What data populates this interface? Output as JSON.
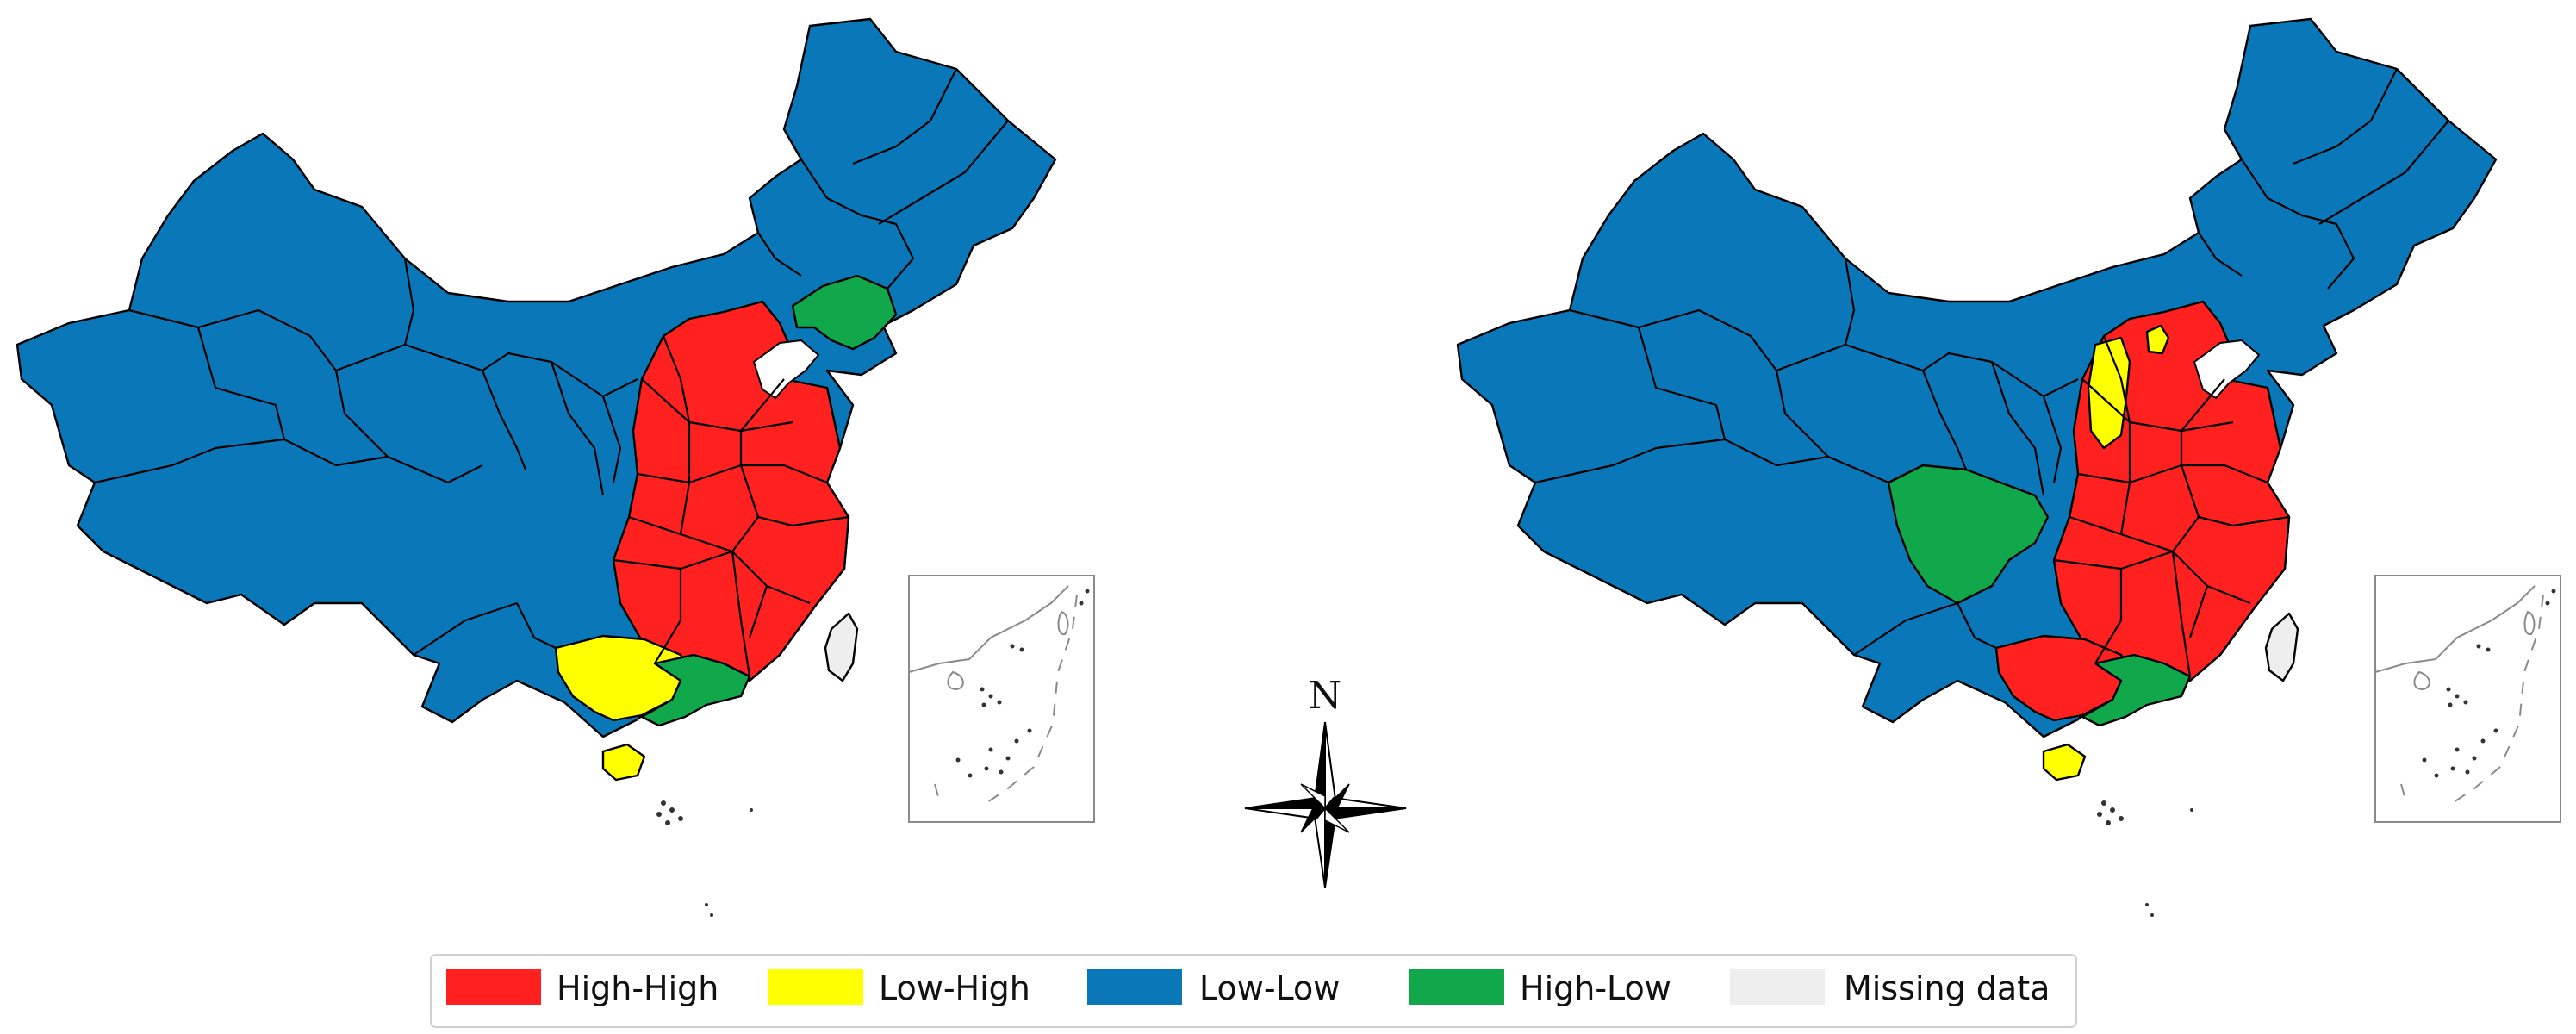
{
  "colors": {
    "high_high": "#ff2020",
    "low_high": "#ffff00",
    "low_low": "#0a78b8",
    "high_low": "#10a84a",
    "missing": "#eeeeee"
  },
  "north_arrow": {
    "label": "N",
    "icon": "compass-rose-icon"
  },
  "legend": {
    "items": [
      {
        "key": "high_high",
        "label": "High-High",
        "color": "#ff2020"
      },
      {
        "key": "low_high",
        "label": "Low-High",
        "color": "#ffff00"
      },
      {
        "key": "low_low",
        "label": "Low-Low",
        "color": "#0a78b8"
      },
      {
        "key": "high_low",
        "label": "High-Low",
        "color": "#10a84a"
      },
      {
        "key": "missing",
        "label": "Missing data",
        "color": "#eeeeee"
      }
    ]
  },
  "maps": [
    {
      "panel": "left",
      "regions": [
        {
          "name": "Liaoning",
          "cluster": "high_low"
        },
        {
          "name": "Guangxi",
          "cluster": "low_high"
        },
        {
          "name": "Hainan",
          "cluster": "low_high"
        },
        {
          "name": "Guangdong",
          "cluster": "high_low"
        },
        {
          "name": "Taiwan",
          "cluster": "missing"
        },
        {
          "name": "Beijing, Tianjin, Hebei, Shanxi, Henan, Shandong, Hubei, Hunan, Anhui, Jiangsu, Shanghai, Zhejiang, Jiangxi, Fujian",
          "cluster": "high_high"
        },
        {
          "name": "Xinjiang, Xizang, Qinghai, Gansu, Inner Mongolia, Ningxia, Shaanxi, Sichuan, Chongqing, Yunnan, Guizhou, Heilongjiang, Jilin",
          "cluster": "low_low"
        }
      ]
    },
    {
      "panel": "right",
      "regions": [
        {
          "name": "Shanxi",
          "cluster": "low_high"
        },
        {
          "name": "Tianjin",
          "cluster": "low_high"
        },
        {
          "name": "Hainan",
          "cluster": "low_high"
        },
        {
          "name": "Sichuan",
          "cluster": "high_low"
        },
        {
          "name": "Guangdong",
          "cluster": "high_low"
        },
        {
          "name": "Taiwan",
          "cluster": "missing"
        },
        {
          "name": "Beijing, Hebei, Henan, Shandong, Hubei, Hunan, Anhui, Jiangsu, Shanghai, Zhejiang, Jiangxi, Fujian, Guangxi",
          "cluster": "high_high"
        },
        {
          "name": "Xinjiang, Xizang, Qinghai, Gansu, Inner Mongolia, Ningxia, Shaanxi, Chongqing, Yunnan, Guizhou, Heilongjiang, Jilin, Liaoning",
          "cluster": "low_low"
        }
      ]
    }
  ]
}
